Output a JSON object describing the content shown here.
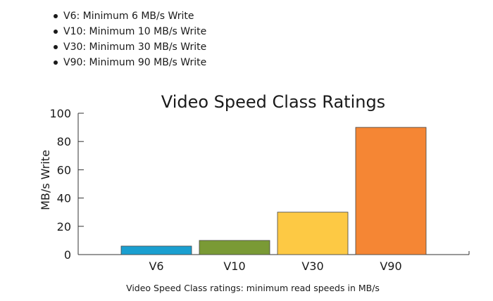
{
  "bullets": [
    "V6: Minimum 6 MB/s Write",
    "V10: Minimum 10 MB/s Write",
    "V30: Minimum 30 MB/s Write",
    "V90: Minimum 90 MB/s Write"
  ],
  "caption": "Video Speed Class ratings: minimum read speeds in MB/s",
  "chart_data": {
    "type": "bar",
    "title": "Video Speed Class Ratings",
    "xlabel": "",
    "ylabel": "MB/s Write",
    "categories": [
      "V6",
      "V10",
      "V30",
      "V90"
    ],
    "values": [
      6,
      10,
      30,
      90
    ],
    "colors": [
      "#1a9fd0",
      "#7a9a35",
      "#fdc944",
      "#f58634"
    ],
    "ylim": [
      0,
      100
    ],
    "yticks": [
      0,
      20,
      40,
      60,
      80,
      100
    ],
    "grid": false,
    "legend": "none"
  }
}
